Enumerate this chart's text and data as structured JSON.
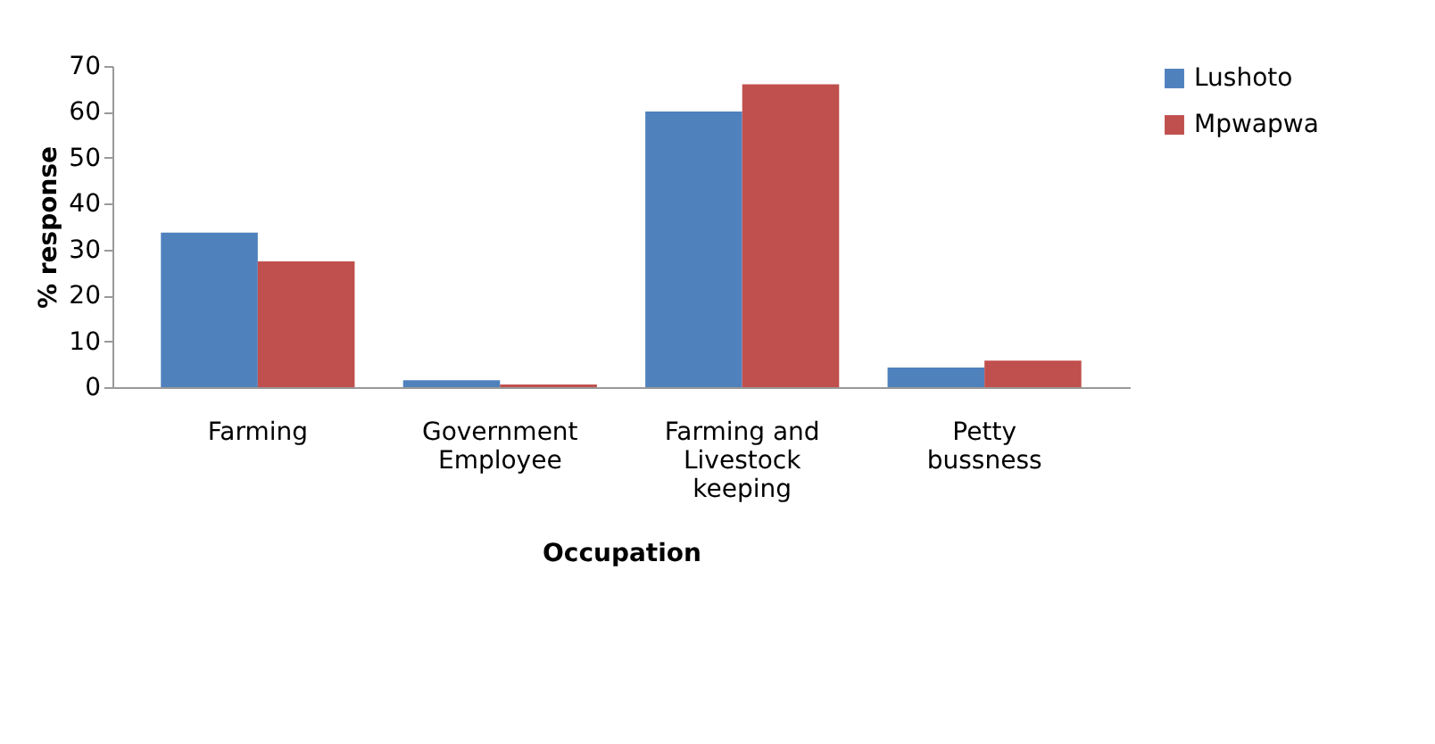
{
  "chart_data": {
    "type": "bar",
    "xlabel": "Occupation",
    "ylabel": "% response",
    "categories": [
      "Farming",
      "Government Employee",
      "Farming and Livestock keeping",
      "Petty bussness"
    ],
    "series": [
      {
        "name": "Lushoto",
        "color": "#4f81bd",
        "values": [
          33.7,
          1.5,
          60.1,
          4.3
        ]
      },
      {
        "name": "Mpwapwa",
        "color": "#c0504d",
        "values": [
          27.4,
          0.6,
          66.0,
          5.8
        ]
      }
    ],
    "ylim": [
      0,
      70
    ],
    "yticks": [
      0,
      10,
      20,
      30,
      40,
      50,
      60,
      70
    ],
    "grid": false,
    "legend": "right"
  }
}
